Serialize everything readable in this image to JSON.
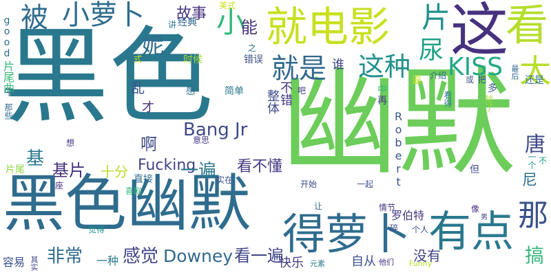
{
  "words": [
    {
      "id": "w1",
      "text": "黑色",
      "color": "#2a788e"
    },
    {
      "id": "w2",
      "text": "幽默",
      "color": "#6ccd5a"
    },
    {
      "id": "w3",
      "text": "黑色幽默",
      "color": "#2f6c8e"
    },
    {
      "id": "w4",
      "text": "就电影",
      "color": "#c8e020"
    },
    {
      "id": "w5",
      "text": "这",
      "color": "#46327e"
    },
    {
      "id": "w6",
      "text": "看",
      "color": "#b5de2b"
    },
    {
      "id": "w7",
      "text": "得萝卜",
      "color": "#2f6c8e"
    },
    {
      "id": "w8",
      "text": "有点",
      "color": "#2a788e"
    },
    {
      "id": "w9",
      "text": "小萝卜",
      "color": "#2f6c8e"
    },
    {
      "id": "w10",
      "text": "被",
      "color": "#2f6c8e"
    },
    {
      "id": "w11",
      "text": "小",
      "color": "#35b779"
    },
    {
      "id": "w12",
      "text": "就是",
      "color": "#31688e"
    },
    {
      "id": "w13",
      "text": "这种",
      "color": "#21918c"
    },
    {
      "id": "w14",
      "text": "KISS",
      "color": "#22a884"
    },
    {
      "id": "w15",
      "text": "片",
      "color": "#21918c"
    },
    {
      "id": "w16",
      "text": "尿",
      "color": "#1fa187"
    },
    {
      "id": "w17",
      "text": "太",
      "color": "#b5de2b"
    },
    {
      "id": "w18",
      "text": "那",
      "color": "#3b528b"
    },
    {
      "id": "w19",
      "text": "Bang Jr",
      "color": "#3e4989"
    },
    {
      "id": "w20",
      "text": "Downey",
      "color": "#31688e"
    },
    {
      "id": "w21",
      "text": "Fucking",
      "color": "#414487"
    },
    {
      "id": "w22",
      "text": "感觉",
      "color": "#414487"
    },
    {
      "id": "w23",
      "text": "非常",
      "color": "#2f6c8e"
    },
    {
      "id": "w24",
      "text": "看一遍",
      "color": "#414487"
    },
    {
      "id": "w25",
      "text": "一遍",
      "color": "#2a788e"
    },
    {
      "id": "w26",
      "text": "看不懂",
      "color": "#443983"
    },
    {
      "id": "w27",
      "text": "故事",
      "color": "#46327e"
    },
    {
      "id": "w28",
      "text": "能",
      "color": "#46327e"
    },
    {
      "id": "w29",
      "text": "妮",
      "color": "#2f6c8e"
    },
    {
      "id": "w30",
      "text": "谁",
      "color": "#414487"
    },
    {
      "id": "w31",
      "text": "不错",
      "color": "#443983"
    },
    {
      "id": "w32",
      "text": "整体",
      "color": "#3e4989"
    },
    {
      "id": "w33",
      "text": "啊",
      "color": "#3e4989"
    },
    {
      "id": "w34",
      "text": "基片",
      "color": "#46327e"
    },
    {
      "id": "w35",
      "text": "基",
      "color": "#2a788e"
    },
    {
      "id": "w36",
      "text": "十分",
      "color": "#b5de2b"
    },
    {
      "id": "w37",
      "text": "乱",
      "color": "#3b528b"
    },
    {
      "id": "w38",
      "text": "才",
      "color": "#46327e"
    },
    {
      "id": "w39",
      "text": "唐",
      "color": "#3e4989"
    },
    {
      "id": "w40",
      "text": "尼",
      "color": "#2f6c8e"
    },
    {
      "id": "w41",
      "text": "搞",
      "color": "#35b779"
    },
    {
      "id": "w42",
      "text": "没有",
      "color": "#414487"
    },
    {
      "id": "w43",
      "text": "自从",
      "color": "#3b528b"
    },
    {
      "id": "w44",
      "text": "快乐",
      "color": "#443983"
    },
    {
      "id": "w45",
      "text": "一种",
      "color": "#2a788e"
    },
    {
      "id": "w46",
      "text": "容易",
      "color": "#3b528b"
    },
    {
      "id": "w47",
      "text": "Robert",
      "color": "#3b528b"
    },
    {
      "id": "w48",
      "text": "罗伯特",
      "color": "#443983"
    },
    {
      "id": "w49",
      "text": "片尾曲",
      "color": "#35b779"
    },
    {
      "id": "w50",
      "text": "片尾",
      "color": "#8fd744"
    },
    {
      "id": "w51",
      "text": "good",
      "color": "#2f6c8e"
    },
    {
      "id": "w52",
      "text": "牛",
      "color": "#2f6c8e"
    },
    {
      "id": "w53",
      "text": "那些",
      "color": "#2f6c8e"
    },
    {
      "id": "w54",
      "text": "讲",
      "color": "#2a788e"
    },
    {
      "id": "w55",
      "text": "经典",
      "color": "#31688e"
    },
    {
      "id": "w56",
      "text": "美式",
      "color": "#c8e020"
    },
    {
      "id": "w57",
      "text": "式",
      "color": "#c8e020"
    },
    {
      "id": "w58",
      "text": "时候",
      "color": "#a0da39"
    },
    {
      "id": "w59",
      "text": "之",
      "color": "#2f6c8e"
    },
    {
      "id": "w60",
      "text": "错误",
      "color": "#3b528b"
    },
    {
      "id": "w61",
      "text": "感",
      "color": "#2f6c8e"
    },
    {
      "id": "w62",
      "text": "简单",
      "color": "#2a788e"
    },
    {
      "id": "w63",
      "text": "吧",
      "color": "#443983"
    },
    {
      "id": "w64",
      "text": "中",
      "color": "#35b779"
    },
    {
      "id": "w65",
      "text": "逼",
      "color": "#c8e020"
    },
    {
      "id": "w66",
      "text": "介绍",
      "color": "#2f6c8e"
    },
    {
      "id": "w67",
      "text": "或",
      "color": "#3b528b"
    },
    {
      "id": "w68",
      "text": "把",
      "color": "#3b528b"
    },
    {
      "id": "w69",
      "text": "最后",
      "color": "#31688e"
    },
    {
      "id": "w70",
      "text": "还是",
      "color": "#2f6c8e"
    },
    {
      "id": "w71",
      "text": "多",
      "color": "#3b528b"
    },
    {
      "id": "w72",
      "text": "再",
      "color": "#443983"
    },
    {
      "id": "w73",
      "text": "看得",
      "color": "#2a788e"
    },
    {
      "id": "w74",
      "text": "除了",
      "color": "#a0da39"
    },
    {
      "id": "w75",
      "text": "一个",
      "color": "#21918c"
    },
    {
      "id": "w76",
      "text": "不",
      "color": "#1f9e89"
    },
    {
      "id": "w77",
      "text": "但",
      "color": "#3e4989"
    },
    {
      "id": "w78",
      "text": "想",
      "color": "#443983"
    },
    {
      "id": "w79",
      "text": "意思",
      "color": "#443983"
    },
    {
      "id": "w80",
      "text": "座",
      "color": "#46327e"
    },
    {
      "id": "w81",
      "text": "直接",
      "color": "#2f6c8e"
    },
    {
      "id": "w82",
      "text": "喜剧",
      "color": "#35b779"
    },
    {
      "id": "w83",
      "text": "实在",
      "color": "#3b528b"
    },
    {
      "id": "w84",
      "text": "开始",
      "color": "#3e4989"
    },
    {
      "id": "w85",
      "text": "一起",
      "color": "#3b528b"
    },
    {
      "id": "w86",
      "text": "让",
      "color": "#31688e"
    },
    {
      "id": "w87",
      "text": "情节",
      "color": "#443983"
    },
    {
      "id": "w88",
      "text": "像",
      "color": "#46327e"
    },
    {
      "id": "w89",
      "text": "男",
      "color": "#3e4989"
    },
    {
      "id": "w90",
      "text": "碎",
      "color": "#3e4989"
    },
    {
      "id": "w91",
      "text": "个人",
      "color": "#3b528b"
    },
    {
      "id": "w92",
      "text": "觉得",
      "color": "#21918c"
    },
    {
      "id": "w93",
      "text": "其实",
      "color": "#3e4989"
    },
    {
      "id": "w94",
      "text": "元素",
      "color": "#2a788e"
    },
    {
      "id": "w95",
      "text": "他们",
      "color": "#46327e"
    },
    {
      "id": "w96",
      "text": "Funny",
      "color": "#b5de2b"
    }
  ]
}
